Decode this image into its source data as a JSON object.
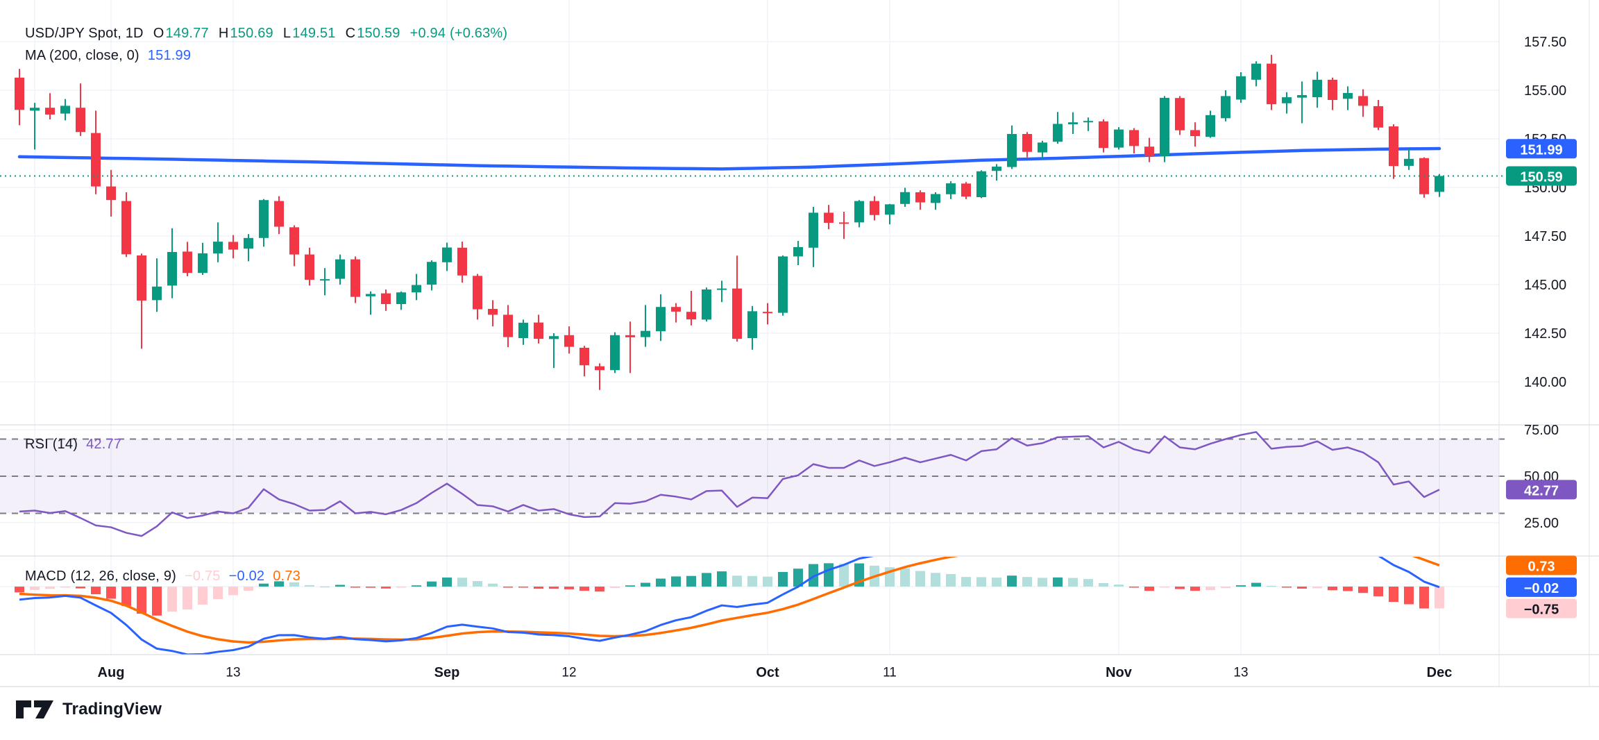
{
  "header": {
    "title": "USD/JPY Spot, 1D",
    "o_label": "O",
    "o_value": "149.77",
    "h_label": "H",
    "h_value": "150.69",
    "l_label": "L",
    "l_value": "149.51",
    "c_label": "C",
    "c_value": "150.59",
    "change": "+0.94 (+0.63%)",
    "ma_label": "MA (200, close, 0)",
    "ma_value": "151.99"
  },
  "rsi_legend": {
    "label": "RSI (14)",
    "value": "42.77"
  },
  "macd_legend": {
    "label": "MACD (12, 26, close, 9)",
    "hist": "−0.75",
    "macd": "−0.02",
    "signal": "0.73"
  },
  "footer": {
    "brand": "TradingView"
  },
  "colors": {
    "up": "#089981",
    "down": "#f23645",
    "ma": "#2962ff",
    "last_price": "#089981",
    "rsi": "#7e57c2",
    "rsi_band": "rgba(126,87,194,0.09)",
    "rsi_dash": "#787b86",
    "macd": "#2962ff",
    "signal": "#ff6d00",
    "hist_up": "#26a69a",
    "hist_up_weak": "#b2dfdb",
    "hist_down": "#ff5252",
    "hist_down_weak": "#ffcdd2",
    "text": "#131722",
    "grid": "#f0f3fa",
    "divider": "#d1d4dc",
    "axis_border": "#e0e3eb",
    "badge_text": "#ffffff"
  },
  "price_axis": {
    "ticks": [
      {
        "label": "157.50",
        "value": 157.5
      },
      {
        "label": "155.00",
        "value": 155.0
      },
      {
        "label": "152.50",
        "value": 152.5
      },
      {
        "label": "150.00",
        "value": 150.0
      },
      {
        "label": "147.50",
        "value": 147.5
      },
      {
        "label": "145.00",
        "value": 145.0
      },
      {
        "label": "142.50",
        "value": 142.5
      },
      {
        "label": "140.00",
        "value": 140.0
      }
    ],
    "badges": [
      {
        "text": "151.99",
        "price": 151.99,
        "color": "#2962ff",
        "text_color": "#ffffff"
      },
      {
        "text": "150.59",
        "price": 150.59,
        "color": "#089981",
        "text_color": "#ffffff"
      }
    ]
  },
  "rsi_axis": {
    "ticks": [
      {
        "label": "75.00",
        "value": 75
      },
      {
        "label": "50.00",
        "value": 50
      },
      {
        "label": "25.00",
        "value": 25
      }
    ],
    "levels": [
      70,
      50,
      30
    ],
    "band": [
      30,
      70
    ],
    "badge": {
      "text": "42.77",
      "value": 42.77,
      "color": "#7e57c2",
      "text_color": "#ffffff"
    }
  },
  "macd_axis": {
    "badges": [
      {
        "text": "0.73",
        "value": 0.73,
        "color": "#ff6d00",
        "text_color": "#ffffff"
      },
      {
        "text": "−0.02",
        "value": -0.02,
        "color": "#2962ff",
        "text_color": "#ffffff"
      },
      {
        "text": "−0.75",
        "value": -0.75,
        "color": "#ffcdd2",
        "text_color": "#131722"
      }
    ]
  },
  "time_axis": {
    "ticks": [
      {
        "label": "Aug",
        "index": 6,
        "bold": true
      },
      {
        "label": "13",
        "index": 14,
        "bold": false
      },
      {
        "label": "Sep",
        "index": 28,
        "bold": true
      },
      {
        "label": "12",
        "index": 36,
        "bold": false
      },
      {
        "label": "Oct",
        "index": 49,
        "bold": true
      },
      {
        "label": "11",
        "index": 57,
        "bold": false
      },
      {
        "label": "Nov",
        "index": 72,
        "bold": true
      },
      {
        "label": "13",
        "index": 80,
        "bold": false
      },
      {
        "label": "Dec",
        "index": 93,
        "bold": true
      }
    ],
    "extra_gridline_index": 1
  },
  "chart_data": {
    "type": "candlestick",
    "symbol": "USD/JPY Spot",
    "interval": "1D",
    "title": "USD/JPY Spot, 1D with MA(200), RSI(14), MACD(12,26,close,9)",
    "price_range_visible": [
      138.2,
      159.6
    ],
    "last_bar": {
      "open": 149.77,
      "high": 150.69,
      "low": 149.51,
      "close": 150.59,
      "change": 0.94,
      "change_pct": 0.63
    },
    "candles": [
      [
        155.65,
        156.1,
        153.2,
        153.99
      ],
      [
        153.95,
        154.35,
        151.95,
        154.1
      ],
      [
        154.1,
        154.85,
        153.5,
        153.75
      ],
      [
        153.8,
        154.55,
        153.45,
        154.2
      ],
      [
        154.1,
        155.35,
        152.65,
        152.85
      ],
      [
        152.8,
        153.95,
        149.65,
        150.05
      ],
      [
        150.05,
        150.9,
        148.5,
        149.35
      ],
      [
        149.3,
        149.75,
        146.42,
        146.56
      ],
      [
        146.5,
        146.6,
        141.7,
        144.18
      ],
      [
        144.2,
        146.35,
        143.6,
        144.9
      ],
      [
        144.95,
        147.9,
        144.3,
        146.68
      ],
      [
        146.7,
        147.2,
        145.43,
        145.6
      ],
      [
        145.6,
        147.15,
        145.5,
        146.61
      ],
      [
        146.6,
        148.2,
        146.15,
        147.21
      ],
      [
        147.2,
        147.55,
        146.35,
        146.8
      ],
      [
        146.85,
        147.6,
        146.2,
        147.4
      ],
      [
        147.4,
        149.4,
        146.95,
        149.35
      ],
      [
        149.3,
        149.55,
        147.6,
        147.98
      ],
      [
        147.95,
        148.05,
        145.95,
        146.55
      ],
      [
        146.55,
        146.9,
        144.95,
        145.25
      ],
      [
        145.25,
        145.85,
        144.45,
        145.28
      ],
      [
        145.3,
        146.55,
        145.0,
        146.3
      ],
      [
        146.3,
        146.45,
        144.05,
        144.37
      ],
      [
        144.4,
        144.65,
        143.45,
        144.52
      ],
      [
        144.55,
        144.75,
        143.65,
        144.0
      ],
      [
        144.0,
        144.65,
        143.7,
        144.6
      ],
      [
        144.6,
        145.55,
        144.2,
        144.98
      ],
      [
        145.0,
        146.25,
        144.7,
        146.17
      ],
      [
        146.15,
        147.16,
        145.7,
        146.91
      ],
      [
        146.9,
        147.21,
        145.1,
        145.47
      ],
      [
        145.45,
        145.55,
        143.2,
        143.73
      ],
      [
        143.75,
        144.2,
        142.85,
        143.45
      ],
      [
        143.45,
        143.95,
        141.78,
        142.3
      ],
      [
        142.25,
        143.2,
        141.9,
        143.04
      ],
      [
        143.05,
        143.45,
        141.97,
        142.21
      ],
      [
        142.2,
        142.5,
        140.71,
        142.35
      ],
      [
        142.4,
        142.85,
        141.45,
        141.8
      ],
      [
        141.75,
        141.85,
        140.28,
        140.85
      ],
      [
        140.8,
        140.95,
        139.58,
        140.6
      ],
      [
        140.6,
        142.55,
        140.45,
        142.4
      ],
      [
        142.4,
        143.1,
        140.45,
        142.29
      ],
      [
        142.3,
        143.95,
        141.8,
        142.62
      ],
      [
        142.6,
        144.5,
        142.1,
        143.85
      ],
      [
        143.85,
        144.05,
        143.05,
        143.61
      ],
      [
        143.6,
        144.68,
        142.9,
        143.21
      ],
      [
        143.2,
        144.85,
        143.1,
        144.75
      ],
      [
        144.75,
        145.2,
        144.1,
        144.8
      ],
      [
        144.8,
        146.49,
        142.07,
        142.21
      ],
      [
        142.25,
        143.9,
        141.65,
        143.63
      ],
      [
        143.6,
        144.05,
        142.95,
        143.56
      ],
      [
        143.55,
        146.5,
        143.4,
        146.45
      ],
      [
        146.45,
        147.25,
        146.0,
        146.93
      ],
      [
        146.9,
        149.0,
        145.9,
        148.7
      ],
      [
        148.7,
        149.1,
        147.85,
        148.18
      ],
      [
        148.2,
        148.75,
        147.35,
        148.18
      ],
      [
        148.2,
        149.35,
        147.95,
        149.3
      ],
      [
        149.3,
        149.55,
        148.3,
        148.58
      ],
      [
        148.6,
        149.15,
        148.1,
        149.13
      ],
      [
        149.15,
        149.98,
        149.0,
        149.76
      ],
      [
        149.75,
        149.85,
        148.85,
        149.23
      ],
      [
        149.2,
        149.75,
        148.85,
        149.66
      ],
      [
        149.65,
        150.32,
        149.4,
        150.21
      ],
      [
        150.2,
        150.28,
        149.4,
        149.53
      ],
      [
        149.5,
        150.88,
        149.45,
        150.83
      ],
      [
        150.85,
        151.2,
        150.35,
        151.07
      ],
      [
        151.05,
        153.19,
        150.95,
        152.75
      ],
      [
        152.75,
        152.85,
        151.55,
        151.83
      ],
      [
        151.8,
        152.4,
        151.45,
        152.31
      ],
      [
        152.35,
        153.88,
        152.25,
        153.27
      ],
      [
        153.25,
        153.87,
        152.75,
        153.35
      ],
      [
        153.35,
        153.6,
        152.9,
        153.42
      ],
      [
        153.4,
        153.5,
        151.8,
        152.03
      ],
      [
        152.05,
        153.1,
        151.95,
        152.98
      ],
      [
        152.95,
        153.05,
        151.75,
        152.13
      ],
      [
        152.1,
        152.55,
        151.3,
        151.62
      ],
      [
        151.6,
        154.7,
        151.3,
        154.61
      ],
      [
        154.6,
        154.7,
        152.7,
        152.94
      ],
      [
        152.95,
        153.35,
        152.1,
        152.64
      ],
      [
        152.6,
        153.95,
        152.55,
        153.72
      ],
      [
        153.56,
        155.0,
        153.4,
        154.7
      ],
      [
        154.52,
        155.93,
        154.35,
        155.72
      ],
      [
        155.54,
        156.49,
        155.2,
        156.37
      ],
      [
        156.37,
        156.82,
        153.98,
        154.28
      ],
      [
        154.33,
        154.9,
        153.8,
        154.64
      ],
      [
        154.62,
        155.45,
        153.3,
        154.75
      ],
      [
        154.64,
        155.95,
        154.1,
        155.54
      ],
      [
        155.54,
        155.65,
        153.98,
        154.5
      ],
      [
        154.56,
        155.2,
        153.98,
        154.86
      ],
      [
        154.7,
        155.05,
        153.63,
        154.2
      ],
      [
        154.18,
        154.5,
        152.95,
        153.08
      ],
      [
        153.14,
        153.25,
        150.44,
        151.1
      ],
      [
        151.11,
        152.0,
        150.9,
        151.47
      ],
      [
        151.51,
        151.55,
        149.47,
        149.65
      ],
      [
        149.77,
        150.69,
        149.51,
        150.59
      ]
    ],
    "ma200": {
      "label": "MA (200, close, 0)",
      "current": 151.99,
      "anchors": [
        [
          0,
          151.58
        ],
        [
          10,
          151.45
        ],
        [
          20,
          151.3
        ],
        [
          30,
          151.12
        ],
        [
          40,
          151.0
        ],
        [
          46,
          150.95
        ],
        [
          52,
          151.05
        ],
        [
          57,
          151.2
        ],
        [
          63,
          151.4
        ],
        [
          68,
          151.5
        ],
        [
          72,
          151.6
        ],
        [
          78,
          151.76
        ],
        [
          84,
          151.9
        ],
        [
          89,
          151.97
        ],
        [
          93,
          152.0
        ]
      ]
    },
    "rsi": {
      "period": 14,
      "current": 42.77,
      "values": [
        31.0,
        31.5,
        30.2,
        31.2,
        27.5,
        23.5,
        22.5,
        19.5,
        17.8,
        23.0,
        30.5,
        27.5,
        28.8,
        31.0,
        30.0,
        33.0,
        43.0,
        37.5,
        35.0,
        31.5,
        31.8,
        36.5,
        30.0,
        30.8,
        29.5,
        31.8,
        35.5,
        41.0,
        46.0,
        40.5,
        34.5,
        33.8,
        31.0,
        34.5,
        31.5,
        32.3,
        29.5,
        28.0,
        28.3,
        35.5,
        35.2,
        36.5,
        40.0,
        39.0,
        37.5,
        42.0,
        42.3,
        33.5,
        38.5,
        38.2,
        48.5,
        50.5,
        56.5,
        54.5,
        54.5,
        58.5,
        55.5,
        57.5,
        60.0,
        57.5,
        59.5,
        61.5,
        58.5,
        63.5,
        64.5,
        70.5,
        66.5,
        67.8,
        71.0,
        71.3,
        71.6,
        65.5,
        68.5,
        64.5,
        62.5,
        71.5,
        65.5,
        64.5,
        67.5,
        70.0,
        72.2,
        73.8,
        64.8,
        65.8,
        66.2,
        68.8,
        64.2,
        65.5,
        62.8,
        57.5,
        45.5,
        47.2,
        38.8,
        42.77
      ]
    },
    "macd": {
      "params": "12, 26, close, 9",
      "seed": {
        "ema12": 153.8,
        "ema26": 154.3,
        "signal": -0.2
      },
      "end_values": {
        "macd": -0.02,
        "signal": 0.73,
        "hist": -0.75
      }
    }
  }
}
